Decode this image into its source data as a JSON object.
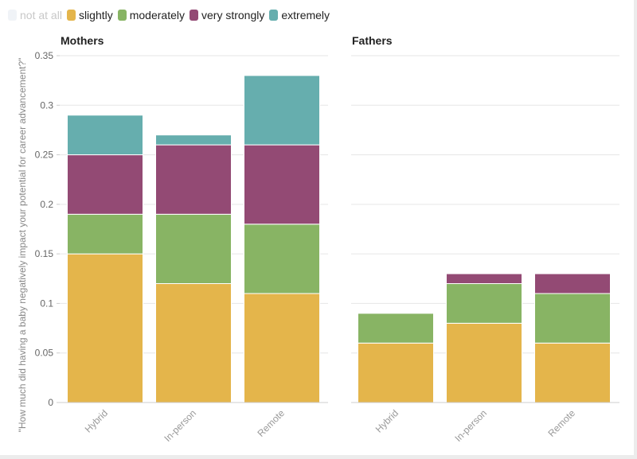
{
  "legend": [
    {
      "label": "not at all",
      "color": "#d3dde7",
      "dim": true
    },
    {
      "label": "slightly",
      "color": "#e4b54b",
      "dim": false
    },
    {
      "label": "moderately",
      "color": "#88b464",
      "dim": false
    },
    {
      "label": "very strongly",
      "color": "#934a74",
      "dim": false
    },
    {
      "label": "extremely",
      "color": "#66aeae",
      "dim": false
    }
  ],
  "chart_data": [
    {
      "type": "bar",
      "stacked": true,
      "title": "Mothers",
      "categories": [
        "Hybrid",
        "In-person",
        "Remote"
      ],
      "ylabel": "\"How much did having a baby negatively impact your potential for career advancement?\"",
      "ylim": [
        0,
        0.35
      ],
      "yticks": [
        "0",
        "0.05",
        "0.1",
        "0.15",
        "0.2",
        "0.25",
        "0.3",
        "0.35"
      ],
      "grid": true,
      "series": [
        {
          "name": "slightly",
          "color": "#e4b54b",
          "values": [
            0.15,
            0.12,
            0.11
          ]
        },
        {
          "name": "moderately",
          "color": "#88b464",
          "values": [
            0.04,
            0.07,
            0.07
          ]
        },
        {
          "name": "very strongly",
          "color": "#934a74",
          "values": [
            0.06,
            0.07,
            0.08
          ]
        },
        {
          "name": "extremely",
          "color": "#66aeae",
          "values": [
            0.04,
            0.01,
            0.07
          ]
        }
      ]
    },
    {
      "type": "bar",
      "stacked": true,
      "title": "Fathers",
      "categories": [
        "Hybrid",
        "In-person",
        "Remote"
      ],
      "ylim": [
        0,
        0.35
      ],
      "grid": true,
      "series": [
        {
          "name": "slightly",
          "color": "#e4b54b",
          "values": [
            0.06,
            0.08,
            0.06
          ]
        },
        {
          "name": "moderately",
          "color": "#88b464",
          "values": [
            0.03,
            0.04,
            0.05
          ]
        },
        {
          "name": "very strongly",
          "color": "#934a74",
          "values": [
            0.0,
            0.01,
            0.02
          ]
        },
        {
          "name": "extremely",
          "color": "#66aeae",
          "values": [
            0.0,
            0.0,
            0.0
          ]
        }
      ]
    }
  ]
}
